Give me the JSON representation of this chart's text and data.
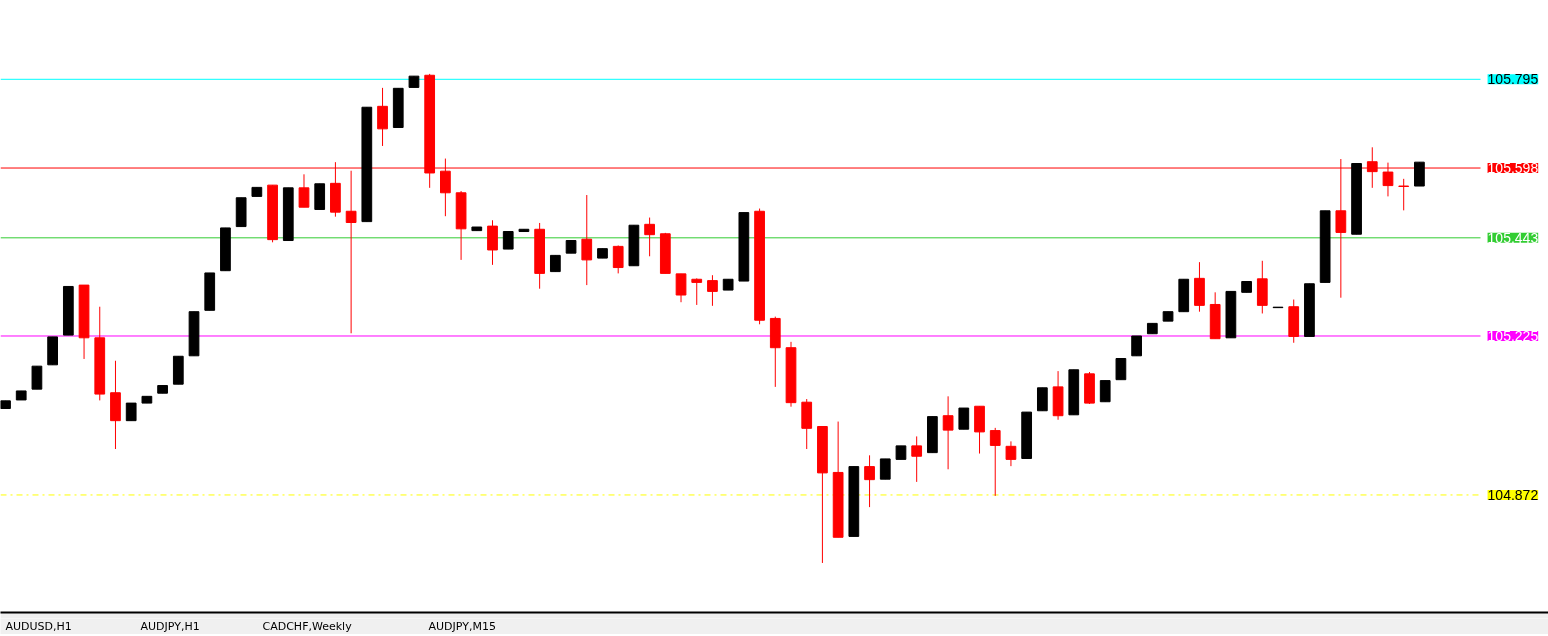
{
  "chart_data": {
    "type": "candlestick",
    "categories": [
      null,
      null,
      null,
      null,
      null,
      null,
      null,
      null,
      null,
      null,
      null,
      null,
      null,
      null,
      null,
      null,
      null,
      null,
      null,
      null,
      null,
      null,
      null,
      null,
      null,
      null,
      null,
      null,
      null,
      null,
      null,
      null,
      null,
      null,
      null,
      null,
      null,
      null,
      null,
      null,
      null,
      null,
      null,
      null,
      null,
      null,
      null,
      null,
      null,
      null,
      null,
      null,
      null,
      null,
      null,
      null,
      null,
      null,
      null,
      null,
      null,
      null,
      null,
      null,
      null,
      null,
      null,
      null,
      null,
      null,
      null,
      null,
      null,
      null,
      null,
      null,
      null,
      null,
      null,
      null,
      null,
      null,
      null,
      null,
      null,
      null,
      null,
      null,
      null,
      null,
      null
    ],
    "ohlc": [
      [
        105.064,
        105.081,
        105.064,
        105.081
      ],
      [
        105.083,
        105.103,
        105.083,
        105.103
      ],
      [
        105.107,
        105.158,
        105.107,
        105.158
      ],
      [
        105.161,
        105.223,
        105.161,
        105.223
      ],
      [
        105.227,
        105.335,
        105.227,
        105.335
      ],
      [
        105.338,
        105.338,
        105.174,
        105.221
      ],
      [
        105.221,
        105.29,
        105.082,
        105.096
      ],
      [
        105.099,
        105.17,
        104.974,
        105.037
      ],
      [
        105.037,
        105.076,
        105.037,
        105.076
      ],
      [
        105.076,
        105.091,
        105.076,
        105.091
      ],
      [
        105.098,
        105.115,
        105.098,
        105.115
      ],
      [
        105.118,
        105.18,
        105.118,
        105.18
      ],
      [
        105.181,
        105.279,
        105.181,
        105.279
      ],
      [
        105.282,
        105.365,
        105.282,
        105.365
      ],
      [
        105.37,
        105.465,
        105.37,
        105.465
      ],
      [
        105.468,
        105.532,
        105.468,
        105.532
      ],
      [
        105.535,
        105.555,
        105.535,
        105.555
      ],
      [
        105.56,
        105.56,
        105.433,
        105.439
      ],
      [
        105.437,
        105.554,
        105.437,
        105.554
      ],
      [
        105.554,
        105.584,
        105.511,
        105.511
      ],
      [
        105.506,
        105.563,
        105.506,
        105.563
      ],
      [
        105.564,
        105.611,
        105.49,
        105.5
      ],
      [
        105.502,
        105.592,
        105.231,
        105.477
      ],
      [
        105.479,
        105.733,
        105.479,
        105.733
      ],
      [
        105.735,
        105.776,
        105.647,
        105.685
      ],
      [
        105.688,
        105.775,
        105.688,
        105.775
      ],
      [
        105.777,
        105.802,
        105.777,
        105.802
      ],
      [
        105.804,
        105.807,
        105.554,
        105.587
      ],
      [
        105.591,
        105.619,
        105.491,
        105.543
      ],
      [
        105.543,
        105.547,
        105.394,
        105.463
      ],
      [
        105.459,
        105.467,
        105.459,
        105.467
      ],
      [
        105.469,
        105.482,
        105.383,
        105.416
      ],
      [
        105.418,
        105.457,
        105.418,
        105.457
      ],
      [
        105.457,
        105.462,
        105.457,
        105.462
      ],
      [
        105.462,
        105.476,
        105.33,
        105.364
      ],
      [
        105.368,
        105.404,
        105.368,
        105.404
      ],
      [
        105.409,
        105.437,
        105.409,
        105.437
      ],
      [
        105.44,
        105.538,
        105.338,
        105.394
      ],
      [
        105.398,
        105.419,
        105.398,
        105.419
      ],
      [
        105.424,
        105.426,
        105.364,
        105.377
      ],
      [
        105.381,
        105.471,
        105.381,
        105.471
      ],
      [
        105.473,
        105.488,
        105.402,
        105.45
      ],
      [
        105.452,
        105.454,
        105.364,
        105.364
      ],
      [
        105.363,
        105.363,
        105.3,
        105.316
      ],
      [
        105.351,
        105.353,
        105.294,
        105.344
      ],
      [
        105.348,
        105.36,
        105.292,
        105.324
      ],
      [
        105.327,
        105.351,
        105.327,
        105.351
      ],
      [
        105.347,
        105.499,
        105.347,
        105.499
      ],
      [
        105.502,
        105.508,
        105.251,
        105.26
      ],
      [
        105.264,
        105.268,
        105.112,
        105.199
      ],
      [
        105.199,
        105.212,
        105.068,
        105.077
      ],
      [
        105.078,
        105.085,
        104.974,
        105.02
      ],
      [
        105.024,
        105.024,
        104.721,
        104.921
      ],
      [
        104.922,
        105.035,
        104.778,
        104.778
      ],
      [
        104.78,
        104.935,
        104.78,
        104.935
      ],
      [
        104.935,
        104.96,
        104.845,
        104.906
      ],
      [
        104.907,
        104.952,
        104.907,
        104.952
      ],
      [
        104.951,
        104.981,
        104.951,
        104.981
      ],
      [
        104.981,
        105.002,
        104.901,
        104.958
      ],
      [
        104.966,
        105.046,
        104.966,
        105.046
      ],
      [
        105.048,
        105.091,
        104.929,
        105.016
      ],
      [
        105.018,
        105.065,
        105.018,
        105.065
      ],
      [
        105.069,
        105.069,
        104.964,
        105.012
      ],
      [
        105.015,
        105.021,
        104.87,
        104.982
      ],
      [
        104.98,
        104.991,
        104.936,
        104.951
      ],
      [
        104.953,
        105.056,
        104.953,
        105.056
      ],
      [
        105.059,
        105.11,
        105.059,
        105.11
      ],
      [
        105.112,
        105.147,
        105.039,
        105.048
      ],
      [
        105.05,
        105.15,
        105.05,
        105.15
      ],
      [
        105.141,
        105.145,
        105.074,
        105.076
      ],
      [
        105.079,
        105.126,
        105.079,
        105.126
      ],
      [
        105.128,
        105.175,
        105.128,
        105.175
      ],
      [
        105.181,
        105.225,
        105.181,
        105.225
      ],
      [
        105.23,
        105.253,
        105.23,
        105.253
      ],
      [
        105.258,
        105.279,
        105.258,
        105.279
      ],
      [
        105.279,
        105.351,
        105.279,
        105.351
      ],
      [
        105.353,
        105.389,
        105.279,
        105.293
      ],
      [
        105.295,
        105.322,
        105.219,
        105.219
      ],
      [
        105.221,
        105.324,
        105.221,
        105.324
      ],
      [
        105.322,
        105.346,
        105.322,
        105.346
      ],
      [
        105.352,
        105.392,
        105.275,
        105.293
      ],
      [
        105.288,
        105.289,
        105.288,
        105.289
      ],
      [
        105.29,
        105.306,
        105.21,
        105.224
      ],
      [
        105.224,
        105.341,
        105.224,
        105.341
      ],
      [
        105.344,
        105.503,
        105.344,
        105.503
      ],
      [
        105.503,
        105.618,
        105.31,
        105.455
      ],
      [
        105.451,
        105.608,
        105.451,
        105.608
      ],
      [
        105.612,
        105.644,
        105.554,
        105.59
      ],
      [
        105.589,
        105.61,
        105.535,
        105.559
      ],
      [
        105.558,
        105.574,
        105.504,
        105.557
      ],
      [
        105.558,
        105.611,
        105.558,
        105.611
      ]
    ],
    "colors": [
      "#000000",
      "#000000",
      "#000000",
      "#000000",
      "#000000",
      "#ff0000",
      "#ff0000",
      "#ff0000",
      "#000000",
      "#000000",
      "#000000",
      "#000000",
      "#000000",
      "#000000",
      "#000000",
      "#000000",
      "#000000",
      "#ff0000",
      "#000000",
      "#ff0000",
      "#000000",
      "#ff0000",
      "#ff0000",
      "#000000",
      "#ff0000",
      "#000000",
      "#000000",
      "#ff0000",
      "#ff0000",
      "#ff0000",
      "#000000",
      "#ff0000",
      "#000000",
      "#000000",
      "#ff0000",
      "#000000",
      "#000000",
      "#ff0000",
      "#000000",
      "#ff0000",
      "#000000",
      "#ff0000",
      "#ff0000",
      "#ff0000",
      "#ff0000",
      "#ff0000",
      "#000000",
      "#000000",
      "#ff0000",
      "#ff0000",
      "#ff0000",
      "#ff0000",
      "#ff0000",
      "#ff0000",
      "#000000",
      "#ff0000",
      "#000000",
      "#000000",
      "#ff0000",
      "#000000",
      "#ff0000",
      "#000000",
      "#ff0000",
      "#ff0000",
      "#ff0000",
      "#000000",
      "#000000",
      "#ff0000",
      "#000000",
      "#ff0000",
      "#000000",
      "#000000",
      "#000000",
      "#000000",
      "#000000",
      "#000000",
      "#ff0000",
      "#ff0000",
      "#000000",
      "#000000",
      "#ff0000",
      "#000000",
      "#ff0000",
      "#000000",
      "#000000",
      "#ff0000",
      "#000000",
      "#ff0000",
      "#ff0000",
      "#ff0000",
      "#000000"
    ],
    "ylim": [
      104.611,
      105.97
    ],
    "tick_labels": false,
    "ref_lines": [
      {
        "axis": "y",
        "value": 105.795,
        "label": "105.795",
        "color": "#00ffff",
        "line_style": "solid"
      },
      {
        "axis": "y",
        "value": 105.598,
        "label": "105.598",
        "color": "#ff0000",
        "line_style": "solid"
      },
      {
        "axis": "y",
        "value": 105.443,
        "label": "105.443",
        "color": "#32cd32",
        "line_style": "solid"
      },
      {
        "axis": "y",
        "value": 105.225,
        "label": "105.225",
        "color": "#ff00ff",
        "line_style": "solid"
      },
      {
        "axis": "y",
        "value": 104.872,
        "label": "104.872",
        "color": "#ffff00",
        "line_style": "dashdot"
      }
    ],
    "annotations": [
      "AUDUSD,H1",
      "AUDJPY,H1",
      "CADCHF,Weekly",
      "AUDJPY,M15"
    ]
  }
}
